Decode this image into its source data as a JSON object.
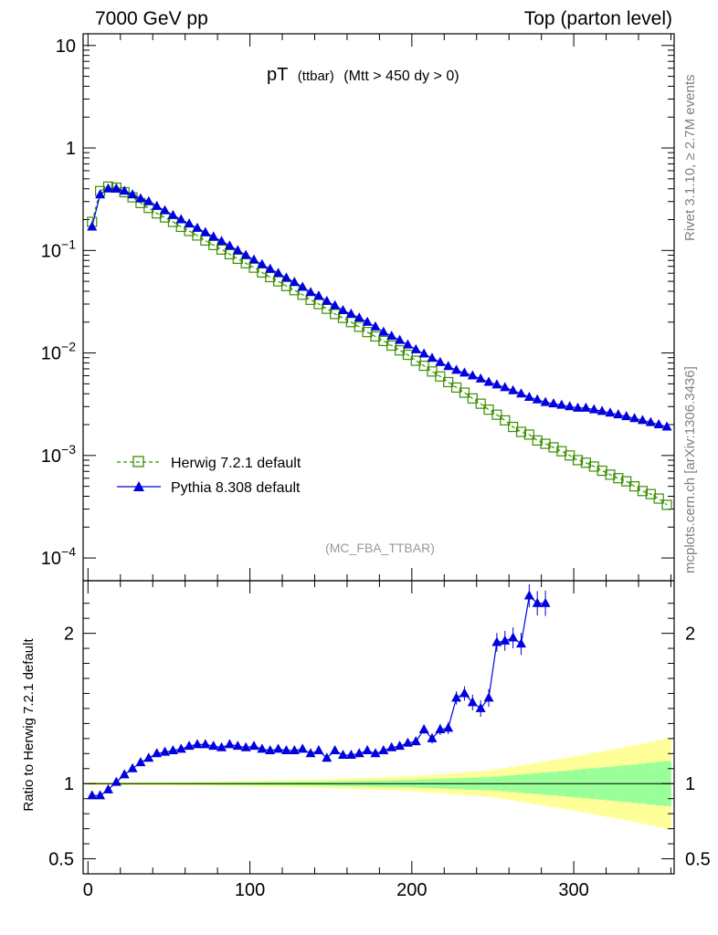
{
  "header": {
    "left": "7000 GeV pp",
    "right": "Top (parton level)"
  },
  "title": {
    "main": "pT",
    "sub": "(ttbar)",
    "cut": "(Mtt > 450 dy > 0)"
  },
  "side_labels": {
    "rivet": "Rivet 3.1.10, ≥ 2.7M events",
    "mcplots": "mcplots.cern.ch [arXiv:1306.3436]"
  },
  "analysis_label": "(MC_FBA_TTBAR)",
  "legend": {
    "herwig": "Herwig 7.2.1 default",
    "pythia": "Pythia 8.308 default"
  },
  "ratio_ylabel": "Ratio to Herwig 7.2.1 default",
  "colors": {
    "herwig": "#3a8f00",
    "pythia": "#0000e0",
    "band_inner": "#99ff99",
    "band_outer": "#ffff99"
  },
  "chart_data": {
    "type": "line",
    "main_panel": {
      "yscale": "log",
      "xlim": [
        -3,
        362
      ],
      "ylim": [
        6e-05,
        13
      ],
      "ytick_labels": [
        "10",
        "1",
        "10^-1",
        "10^-2",
        "10^-3",
        "10^-4"
      ],
      "series": [
        {
          "name": "Herwig 7.2.1 default",
          "style": "dashed line, open square markers",
          "x": [
            2.5,
            7.5,
            12.5,
            17.5,
            22.5,
            27.5,
            32.5,
            37.5,
            42.5,
            47.5,
            52.5,
            57.5,
            62.5,
            67.5,
            72.5,
            77.5,
            82.5,
            87.5,
            92.5,
            97.5,
            102.5,
            107.5,
            112.5,
            117.5,
            122.5,
            127.5,
            132.5,
            137.5,
            142.5,
            147.5,
            152.5,
            157.5,
            162.5,
            167.5,
            172.5,
            177.5,
            182.5,
            187.5,
            192.5,
            197.5,
            202.5,
            207.5,
            212.5,
            217.5,
            222.5,
            227.5,
            232.5,
            237.5,
            242.5,
            247.5,
            252.5,
            257.5,
            262.5,
            267.5,
            272.5,
            277.5,
            282.5,
            287.5,
            292.5,
            297.5,
            302.5,
            307.5,
            312.5,
            317.5,
            322.5,
            327.5,
            332.5,
            337.5,
            342.5,
            347.5,
            352.5,
            357.5
          ],
          "y": [
            0.19,
            0.38,
            0.42,
            0.41,
            0.37,
            0.33,
            0.29,
            0.26,
            0.23,
            0.21,
            0.19,
            0.17,
            0.155,
            0.14,
            0.125,
            0.113,
            0.102,
            0.092,
            0.083,
            0.075,
            0.068,
            0.061,
            0.055,
            0.05,
            0.045,
            0.041,
            0.037,
            0.033,
            0.03,
            0.027,
            0.024,
            0.022,
            0.02,
            0.018,
            0.016,
            0.0145,
            0.0131,
            0.0118,
            0.0106,
            0.0096,
            0.0084,
            0.0075,
            0.0066,
            0.0059,
            0.0052,
            0.0046,
            0.0041,
            0.0036,
            0.0032,
            0.0028,
            0.0025,
            0.0022,
            0.0019,
            0.0017,
            0.0016,
            0.0014,
            0.0013,
            0.0012,
            0.0011,
            0.001,
            0.0009,
            0.00085,
            0.00078,
            0.00071,
            0.00065,
            0.0006,
            0.00056,
            0.0005,
            0.00045,
            0.00042,
            0.00038,
            0.00033
          ]
        },
        {
          "name": "Pythia 8.308 default",
          "style": "solid line, filled triangle markers",
          "x": [
            2.5,
            7.5,
            12.5,
            17.5,
            22.5,
            27.5,
            32.5,
            37.5,
            42.5,
            47.5,
            52.5,
            57.5,
            62.5,
            67.5,
            72.5,
            77.5,
            82.5,
            87.5,
            92.5,
            97.5,
            102.5,
            107.5,
            112.5,
            117.5,
            122.5,
            127.5,
            132.5,
            137.5,
            142.5,
            147.5,
            152.5,
            157.5,
            162.5,
            167.5,
            172.5,
            177.5,
            182.5,
            187.5,
            192.5,
            197.5,
            202.5,
            207.5,
            212.5,
            217.5,
            222.5,
            227.5,
            232.5,
            237.5,
            242.5,
            247.5,
            252.5,
            257.5,
            262.5,
            267.5,
            272.5,
            277.5,
            282.5,
            287.5,
            292.5,
            297.5,
            302.5,
            307.5,
            312.5,
            317.5,
            322.5,
            327.5,
            332.5,
            337.5,
            342.5,
            347.5,
            352.5,
            357.5
          ],
          "y": [
            0.17,
            0.35,
            0.4,
            0.4,
            0.38,
            0.35,
            0.32,
            0.3,
            0.27,
            0.245,
            0.22,
            0.2,
            0.182,
            0.165,
            0.15,
            0.136,
            0.123,
            0.111,
            0.1,
            0.09,
            0.081,
            0.073,
            0.066,
            0.06,
            0.054,
            0.049,
            0.044,
            0.039,
            0.036,
            0.032,
            0.029,
            0.026,
            0.024,
            0.022,
            0.02,
            0.018,
            0.016,
            0.0146,
            0.0133,
            0.012,
            0.0108,
            0.0098,
            0.0089,
            0.0081,
            0.0074,
            0.0068,
            0.0064,
            0.006,
            0.0056,
            0.0052,
            0.0049,
            0.0046,
            0.0043,
            0.004,
            0.0037,
            0.0035,
            0.0033,
            0.0032,
            0.0031,
            0.003,
            0.0029,
            0.0029,
            0.0028,
            0.0027,
            0.0026,
            0.0025,
            0.0024,
            0.0023,
            0.0022,
            0.0021,
            0.002,
            0.0019
          ]
        }
      ]
    },
    "ratio_panel": {
      "ylabel": "Ratio to Herwig 7.2.1 default",
      "ylim": [
        0.4,
        2.35
      ],
      "yticks": [
        0.5,
        1,
        2
      ],
      "xlim": [
        -3,
        362
      ],
      "xticks": [
        0,
        100,
        200,
        300
      ],
      "series": [
        {
          "name": "Pythia 8.308 default",
          "x": [
            2.5,
            7.5,
            12.5,
            17.5,
            22.5,
            27.5,
            32.5,
            37.5,
            42.5,
            47.5,
            52.5,
            57.5,
            62.5,
            67.5,
            72.5,
            77.5,
            82.5,
            87.5,
            92.5,
            97.5,
            102.5,
            107.5,
            112.5,
            117.5,
            122.5,
            127.5,
            132.5,
            137.5,
            142.5,
            147.5,
            152.5,
            157.5,
            162.5,
            167.5,
            172.5,
            177.5,
            182.5,
            187.5,
            192.5,
            197.5,
            202.5,
            207.5,
            212.5,
            217.5,
            222.5,
            227.5,
            232.5,
            237.5,
            242.5,
            247.5,
            252.5,
            257.5,
            262.5,
            267.5,
            272.5,
            277.5,
            282.5
          ],
          "y": [
            0.92,
            0.92,
            0.96,
            1.01,
            1.06,
            1.1,
            1.14,
            1.17,
            1.2,
            1.21,
            1.22,
            1.23,
            1.25,
            1.26,
            1.26,
            1.25,
            1.24,
            1.26,
            1.25,
            1.24,
            1.25,
            1.23,
            1.22,
            1.23,
            1.22,
            1.22,
            1.23,
            1.2,
            1.22,
            1.17,
            1.22,
            1.19,
            1.19,
            1.2,
            1.22,
            1.2,
            1.22,
            1.24,
            1.25,
            1.27,
            1.28,
            1.36,
            1.3,
            1.36,
            1.37,
            1.57,
            1.6,
            1.54,
            1.5,
            1.57,
            1.94,
            1.95,
            1.97,
            1.93,
            2.25,
            2.2,
            2.2
          ]
        }
      ],
      "bands": {
        "x": [
          0,
          50,
          100,
          150,
          200,
          250,
          300,
          320,
          340,
          357
        ],
        "inner_half_width": [
          0.005,
          0.006,
          0.01,
          0.015,
          0.025,
          0.045,
          0.09,
          0.11,
          0.13,
          0.15
        ],
        "outer_half_width": [
          0.01,
          0.012,
          0.02,
          0.03,
          0.05,
          0.09,
          0.18,
          0.22,
          0.26,
          0.3
        ]
      }
    }
  }
}
